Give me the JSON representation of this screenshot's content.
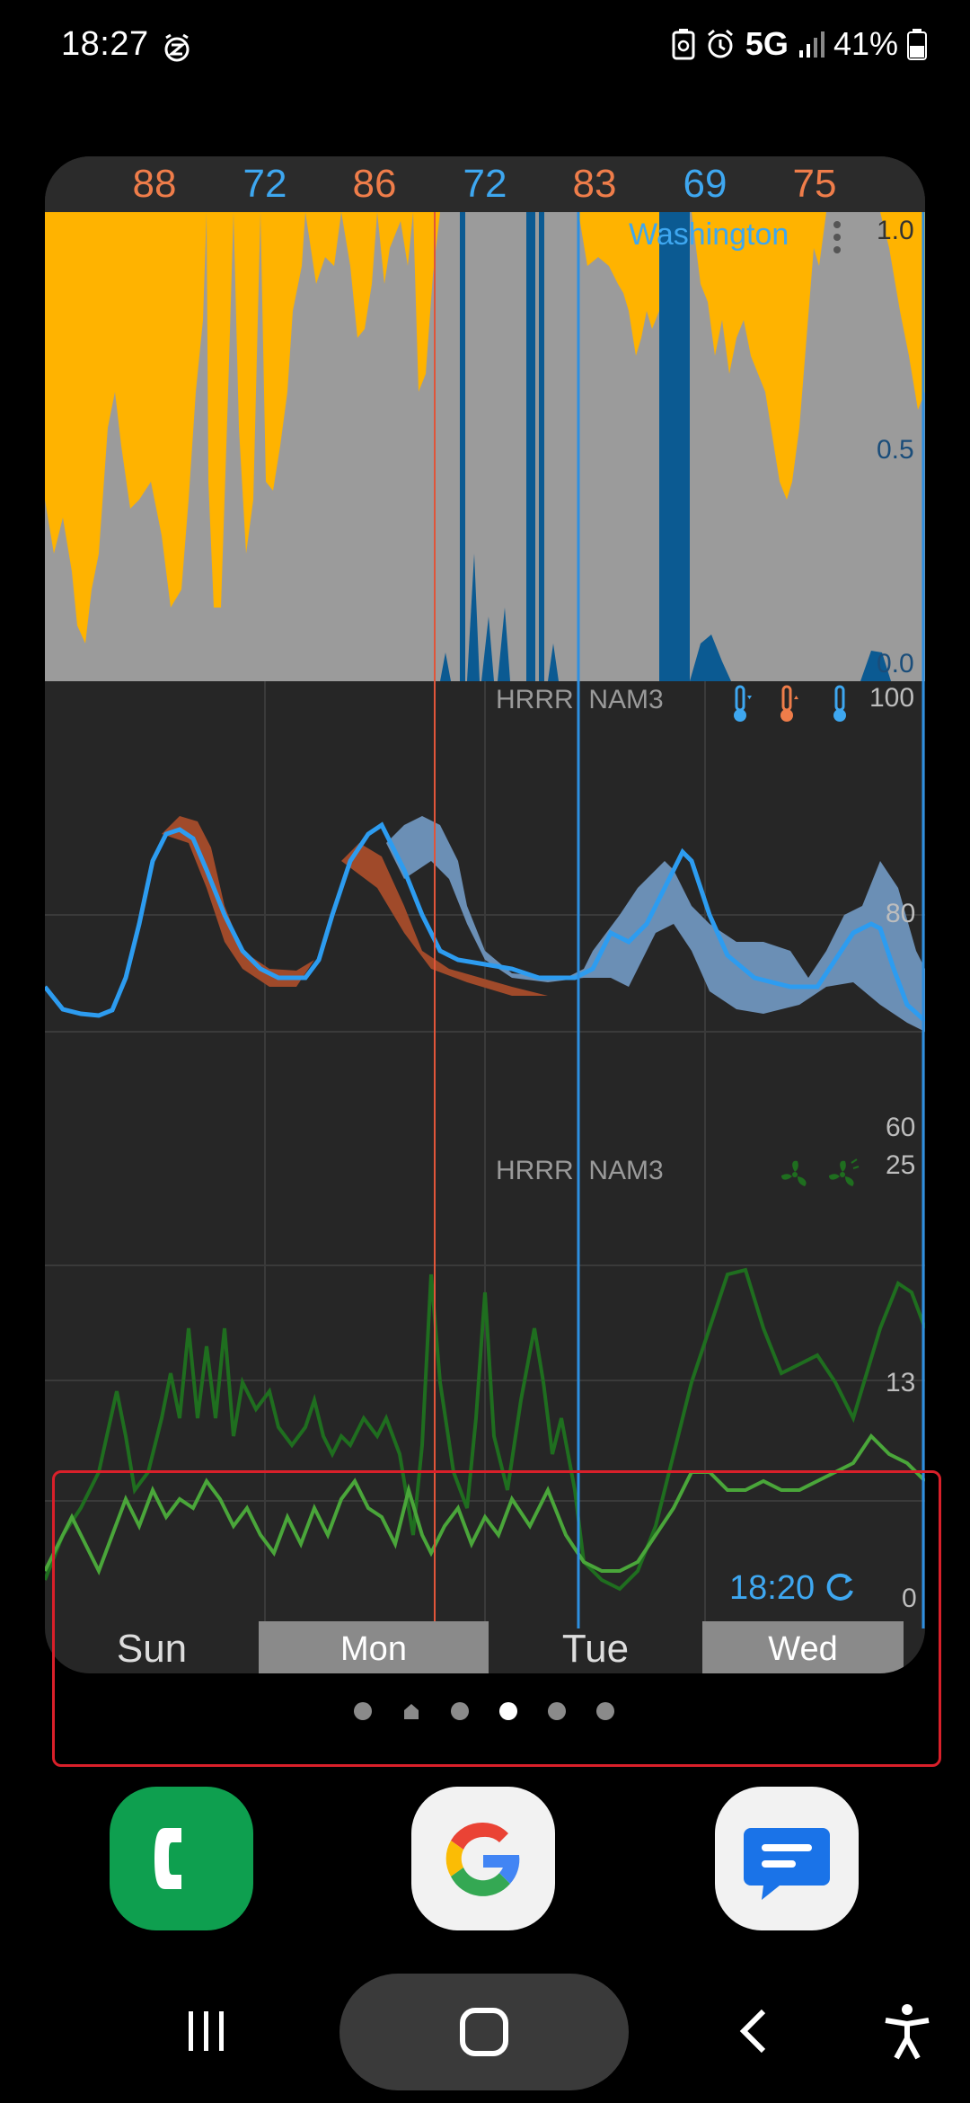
{
  "status_bar": {
    "time": "18:27",
    "network": "5G",
    "battery": "41%"
  },
  "widget": {
    "location": "Washington",
    "highs_lows": [
      {
        "value": "88",
        "kind": "high",
        "color": "#ef7d4a"
      },
      {
        "value": "72",
        "kind": "low",
        "color": "#3ea7f0"
      },
      {
        "value": "86",
        "kind": "high",
        "color": "#ef7d4a"
      },
      {
        "value": "72",
        "kind": "low",
        "color": "#3ea7f0"
      },
      {
        "value": "83",
        "kind": "high",
        "color": "#ef7d4a"
      },
      {
        "value": "69",
        "kind": "low",
        "color": "#3ea7f0"
      },
      {
        "value": "75",
        "kind": "high",
        "color": "#ef7d4a"
      }
    ],
    "precip_axis": [
      "1.0",
      "0.5",
      "0.0"
    ],
    "temp_models": "HRRR  NAM3",
    "temp_axis": [
      "100",
      "80",
      "60"
    ],
    "wind_models": "HRRR  NAM3",
    "wind_axis": [
      "25",
      "13",
      "0"
    ],
    "updated_time": "18:20",
    "days": [
      {
        "label": "Sun"
      },
      {
        "label": "Mon"
      },
      {
        "label": "Tue"
      },
      {
        "label": "Wed"
      }
    ],
    "colors": {
      "sun": "#ffb300",
      "cloud": "#9b9b9b",
      "rain": "#0b5a92",
      "temp_line": "#2d9cf0",
      "temp_band": "#6b8fb5",
      "temp_warm_band": "#a04a2a",
      "wind_dark": "#1f6e1f",
      "wind_light": "#4aa63a",
      "now_line": "#e0553a",
      "midnight_line": "#2d8fe0"
    }
  },
  "page_indicator": {
    "count": 6,
    "active_index": 3,
    "home_index": 1
  },
  "dock": {
    "apps": [
      {
        "name": "Phone"
      },
      {
        "name": "Google"
      },
      {
        "name": "Messages"
      }
    ]
  }
}
